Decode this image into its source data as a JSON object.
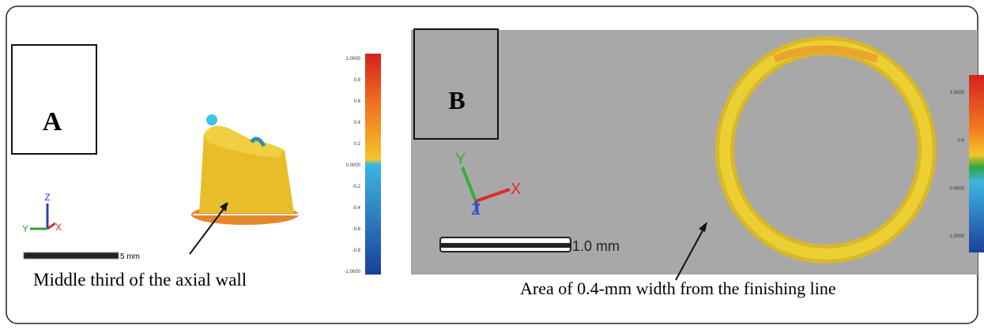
{
  "panel_a": {
    "label": "A",
    "caption": "Middle third of the axial wall",
    "scale_label": "5 mm",
    "axes": {
      "z": "Z",
      "y": "Y",
      "x": "X"
    },
    "colorbar_labels": [
      "1.0000",
      "0.8",
      "0.6",
      "0.4",
      "0.2",
      "0.0000",
      "-0.2",
      "-0.4",
      "-0.6",
      "-0.8",
      "-1.0000"
    ]
  },
  "panel_b": {
    "label": "B",
    "caption": "Area of 0.4-mm width from the finishing line",
    "scale_label": "1.0 mm",
    "axes": {
      "y": "Y",
      "x": "X",
      "z": "Z"
    },
    "colorbar_labels": [
      "1.0000",
      "0.4",
      "0.0000",
      "-1.0000"
    ]
  }
}
